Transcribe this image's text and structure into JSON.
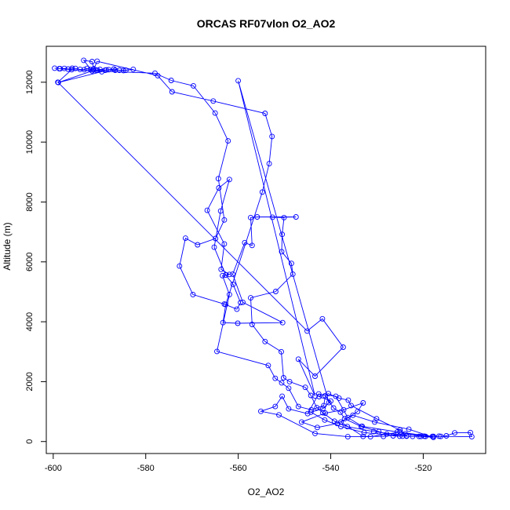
{
  "chart_data": {
    "type": "line",
    "title": "ORCAS RF07vlon O2_AO2",
    "xlabel": "O2_AO2",
    "ylabel": "Altitude (m)",
    "xlim": [
      -601.5,
      -506.5
    ],
    "ylim": [
      -400,
      13200
    ],
    "x_ticks": [
      -600,
      -580,
      -560,
      -540,
      -520
    ],
    "y_ticks": [
      0,
      2000,
      4000,
      6000,
      8000,
      10000,
      12000
    ],
    "x_tick_labels": [
      "-600",
      "-580",
      "-560",
      "-540",
      "-520"
    ],
    "y_tick_labels": [
      "0",
      "2000",
      "4000",
      "6000",
      "8000",
      "10000",
      "12000"
    ],
    "grid": false,
    "series": [
      {
        "color": "#0000ff",
        "marker": "open-circle",
        "points": [
          [
            -599.7,
            12470
          ],
          [
            -598.5,
            12450
          ],
          [
            -597.6,
            12460
          ],
          [
            -596.8,
            12440
          ],
          [
            -595.9,
            12470
          ],
          [
            -595.2,
            12460
          ],
          [
            -594.2,
            12430
          ],
          [
            -593.3,
            12420
          ],
          [
            -592.7,
            12460
          ],
          [
            -592.0,
            12430
          ],
          [
            -591.4,
            12420
          ],
          [
            -590.7,
            12400
          ],
          [
            -589.9,
            12430
          ],
          [
            -588.8,
            12400
          ],
          [
            -588.0,
            12420
          ],
          [
            -586.9,
            12440
          ],
          [
            -585.7,
            12400
          ],
          [
            -584.3,
            12400
          ],
          [
            -582.7,
            12430
          ],
          [
            -584.8,
            12390
          ],
          [
            -586.6,
            12400
          ],
          [
            -588.5,
            12410
          ],
          [
            -590.4,
            12400
          ],
          [
            -589.5,
            12350
          ],
          [
            -598.9,
            11990
          ],
          [
            -591.6,
            12380
          ],
          [
            -578.0,
            12300
          ],
          [
            -574.5,
            12060
          ],
          [
            -569.7,
            11880
          ],
          [
            -565.0,
            10970
          ],
          [
            -562.2,
            10040
          ],
          [
            -564.3,
            8780
          ],
          [
            -563.0,
            7400
          ],
          [
            -564.9,
            6780
          ],
          [
            -568.8,
            6570
          ],
          [
            -571.4,
            6790
          ],
          [
            -572.7,
            5860
          ],
          [
            -569.8,
            4910
          ],
          [
            -563.0,
            4590
          ],
          [
            -560.3,
            4420
          ],
          [
            -559.5,
            4640
          ],
          [
            -561.1,
            5250
          ],
          [
            -562.7,
            5560
          ],
          [
            -565.2,
            6490
          ],
          [
            -563.8,
            7700
          ],
          [
            -561.9,
            8750
          ],
          [
            -564.2,
            8470
          ],
          [
            -566.7,
            7720
          ],
          [
            -563.0,
            6600
          ],
          [
            -563.7,
            5750
          ],
          [
            -561.9,
            5580
          ],
          [
            -563.4,
            5540
          ],
          [
            -561.9,
            4910
          ],
          [
            -564.6,
            3010
          ],
          [
            -553.5,
            2540
          ],
          [
            -552.0,
            2110
          ],
          [
            -550.6,
            1960
          ],
          [
            -549.1,
            1780
          ],
          [
            -547.0,
            1170
          ],
          [
            -544.2,
            1060
          ],
          [
            -541.5,
            1200
          ],
          [
            -541.2,
            1530
          ],
          [
            -539.4,
            1120
          ],
          [
            -537.9,
            980
          ],
          [
            -537.0,
            760
          ],
          [
            -533.4,
            500
          ],
          [
            -529.6,
            330
          ],
          [
            -527.9,
            250
          ],
          [
            -526.5,
            190
          ],
          [
            -525.1,
            180
          ],
          [
            -523.6,
            180
          ],
          [
            -522.3,
            170
          ],
          [
            -520.9,
            170
          ],
          [
            -519.5,
            170
          ],
          [
            -517.8,
            170
          ],
          [
            -516.2,
            170
          ],
          [
            -515.0,
            190
          ],
          [
            -513.2,
            290
          ],
          [
            -509.8,
            300
          ],
          [
            -509.5,
            160
          ],
          [
            -518.0,
            170
          ],
          [
            -525.6,
            320
          ],
          [
            -533.2,
            510
          ],
          [
            -536.3,
            800
          ],
          [
            -538.9,
            1510
          ],
          [
            -542.6,
            1590
          ],
          [
            -545.0,
            930
          ],
          [
            -549.1,
            1090
          ],
          [
            -550.5,
            1510
          ],
          [
            -552.0,
            1170
          ],
          [
            -555.1,
            1010
          ],
          [
            -551.2,
            890
          ],
          [
            -543.4,
            270
          ],
          [
            -536.3,
            160
          ],
          [
            -531.4,
            160
          ],
          [
            -525.0,
            320
          ],
          [
            -520.5,
            170
          ],
          [
            -517.8,
            140
          ],
          [
            -523.1,
            410
          ],
          [
            -530.5,
            650
          ],
          [
            -535.2,
            880
          ],
          [
            -538.6,
            600
          ],
          [
            -542.9,
            470
          ],
          [
            -546.3,
            650
          ],
          [
            -541.2,
            950
          ],
          [
            -537.2,
            1060
          ],
          [
            -533.0,
            1290
          ],
          [
            -534.2,
            1000
          ],
          [
            -537.8,
            650
          ],
          [
            -533.0,
            170
          ],
          [
            -528.6,
            170
          ],
          [
            -523.9,
            260
          ],
          [
            -519.8,
            180
          ],
          [
            -516.6,
            180
          ],
          [
            -524.5,
            180
          ],
          [
            -532.8,
            300
          ],
          [
            -537.8,
            500
          ],
          [
            -541.3,
            720
          ],
          [
            -544.3,
            980
          ],
          [
            -541.7,
            1100
          ],
          [
            -540.0,
            1350
          ],
          [
            -542.5,
            1500
          ],
          [
            -540.5,
            1600
          ],
          [
            -538.2,
            1450
          ],
          [
            -536.2,
            1380
          ],
          [
            -535.6,
            1200
          ],
          [
            -530.1,
            760
          ],
          [
            -525.0,
            380
          ],
          [
            -523.6,
            190
          ],
          [
            -530.7,
            330
          ],
          [
            -536.4,
            500
          ],
          [
            -539.2,
            680
          ],
          [
            -541.7,
            960
          ],
          [
            -543.0,
            1130
          ],
          [
            -544.3,
            1540
          ],
          [
            -545.5,
            1810
          ],
          [
            -548.9,
            2000
          ],
          [
            -550.2,
            2130
          ],
          [
            -550.7,
            3000
          ],
          [
            -554.2,
            3340
          ],
          [
            -557.0,
            3910
          ],
          [
            -557.3,
            4800
          ],
          [
            -551.9,
            5010
          ],
          [
            -548.2,
            5590
          ],
          [
            -548.5,
            5950
          ],
          [
            -550.6,
            6340
          ],
          [
            -550.5,
            6920
          ],
          [
            -550.1,
            7480
          ],
          [
            -552.6,
            7490
          ],
          [
            -547.5,
            7500
          ],
          [
            -555.9,
            7500
          ],
          [
            -557.3,
            7480
          ],
          [
            -557.0,
            6550
          ],
          [
            -558.6,
            6640
          ],
          [
            -561.2,
            5590
          ],
          [
            -559.0,
            4650
          ],
          [
            -550.4,
            3970
          ],
          [
            -560.1,
            3950
          ],
          [
            -563.3,
            3970
          ],
          [
            -562.7,
            4580
          ],
          [
            -554.8,
            8330
          ],
          [
            -553.3,
            9280
          ],
          [
            -552.7,
            10190
          ],
          [
            -554.2,
            10960
          ],
          [
            -565.4,
            11370
          ],
          [
            -574.3,
            11680
          ],
          [
            -577.4,
            12220
          ],
          [
            -590.5,
            12700
          ],
          [
            -591.2,
            12450
          ],
          [
            -591.6,
            12690
          ],
          [
            -593.4,
            12730
          ],
          [
            -591.6,
            12380
          ],
          [
            -598.7,
            12450
          ],
          [
            -596.0,
            12420
          ],
          [
            -599.0,
            12000
          ],
          [
            -545.1,
            3690
          ],
          [
            -541.8,
            4100
          ],
          [
            -537.3,
            3150
          ],
          [
            -543.4,
            2180
          ],
          [
            -547.0,
            2750
          ],
          [
            -543.4,
            1520
          ],
          [
            -560.0,
            12050
          ],
          [
            -540.4,
            1300
          ]
        ]
      }
    ]
  }
}
